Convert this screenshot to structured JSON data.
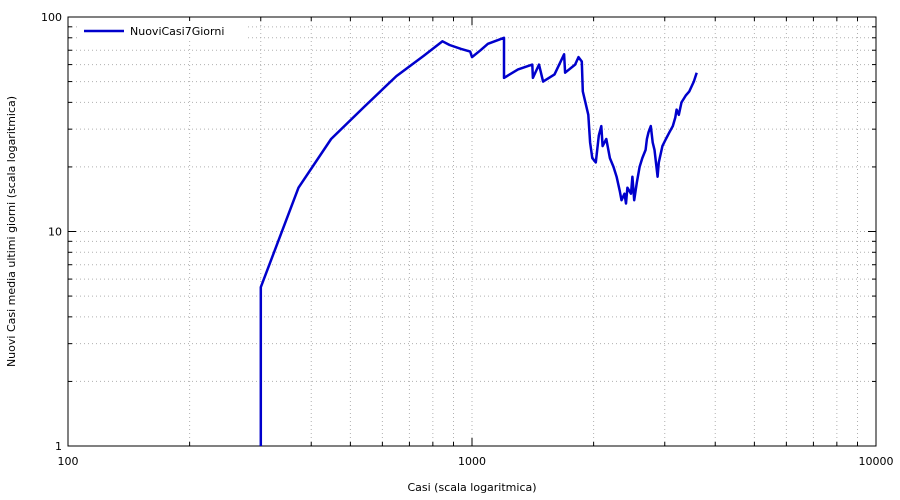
{
  "chart_data": {
    "type": "line",
    "xlabel": "Casi (scala logaritmica)",
    "ylabel": "Nuovi Casi media ultimi giorni (scala logaritmica)",
    "x_scale": "log",
    "y_scale": "log",
    "xlim": [
      100,
      10000
    ],
    "ylim": [
      1,
      100
    ],
    "x_ticks": [
      {
        "value": 100,
        "label": "100"
      },
      {
        "value": 1000,
        "label": "1000"
      },
      {
        "value": 10000,
        "label": "10000"
      }
    ],
    "y_ticks": [
      {
        "value": 1,
        "label": "1"
      },
      {
        "value": 10,
        "label": "10"
      },
      {
        "value": 100,
        "label": "100"
      }
    ],
    "grid": true,
    "legend_position": "top-left",
    "series": [
      {
        "name": "NuoviCasi7Giorni",
        "color": "#0000cc",
        "x": [
          300,
          300,
          372,
          448,
          540,
          650,
          760,
          845,
          880,
          940,
          990,
          1000,
          1050,
          1095,
          1200,
          1200,
          1300,
          1410,
          1415,
          1465,
          1500,
          1600,
          1690,
          1700,
          1800,
          1835,
          1870,
          1880,
          1940,
          1960,
          1985,
          2025,
          2060,
          2090,
          2105,
          2150,
          2195,
          2240,
          2280,
          2320,
          2345,
          2385,
          2405,
          2425,
          2475,
          2495,
          2520,
          2560,
          2600,
          2640,
          2690,
          2710,
          2735,
          2770,
          2800,
          2830,
          2880,
          2900,
          2960,
          3020,
          3080,
          3140,
          3185,
          3210,
          3250,
          3300,
          3380,
          3450,
          3540,
          3600
        ],
        "y": [
          1,
          5.5,
          16,
          27,
          38,
          53,
          66,
          77,
          74,
          71,
          69,
          65,
          70,
          75,
          80,
          52,
          57,
          60,
          52,
          60,
          50,
          54,
          67,
          55,
          60,
          65,
          62,
          45,
          35,
          26,
          22,
          21,
          28,
          31,
          25,
          27,
          22,
          20,
          18,
          15.5,
          14,
          15,
          13.5,
          16,
          15,
          18,
          14,
          17,
          20,
          22,
          24,
          27,
          29,
          31,
          26,
          24,
          18,
          21,
          25,
          27,
          29,
          31,
          34,
          37,
          35,
          40,
          43,
          45,
          50,
          55
        ]
      }
    ]
  }
}
